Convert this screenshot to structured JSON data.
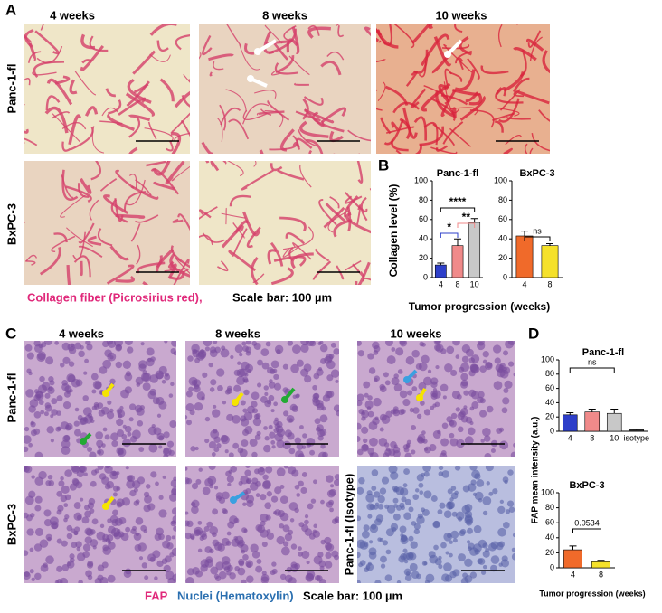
{
  "panels": {
    "A": {
      "label": "A",
      "columns": [
        "4 weeks",
        "8 weeks",
        "10 weeks"
      ],
      "rows": [
        "Panc-1-fl",
        "BxPC-3"
      ],
      "caption": [
        "Collagen fiber (Picrosirius red),",
        "Scale bar: 100 µm"
      ]
    },
    "B": {
      "label": "B"
    },
    "C": {
      "label": "C",
      "columns": [
        "4 weeks",
        "8 weeks",
        "10 weeks"
      ],
      "rows": [
        "Panc-1-fl",
        "BxPC-3"
      ],
      "isotype_label": "Panc-1-fl (Isotype)",
      "caption": [
        "FAP",
        "Nuclei (Hematoxylin)",
        "Scale bar: 100 µm"
      ]
    },
    "D": {
      "label": "D"
    }
  },
  "chart_data": [
    {
      "type": "bar",
      "title": "Panc-1-fl",
      "ylabel": "Collagen level (%)",
      "xlabel": "Tumor progression (weeks)",
      "categories": [
        "4",
        "8",
        "10"
      ],
      "values": [
        13,
        33,
        57
      ],
      "errors": [
        2,
        7,
        4
      ],
      "colors": [
        "#2e3fc9",
        "#f08a8a",
        "#c8c8c8"
      ],
      "ylim": [
        0,
        100
      ],
      "yticks": [
        0,
        20,
        40,
        60,
        80,
        100
      ],
      "annotations": [
        "****",
        "*",
        "**"
      ]
    },
    {
      "type": "bar",
      "title": "BxPC-3",
      "categories": [
        "4",
        "8"
      ],
      "values": [
        43,
        33
      ],
      "errors": [
        5,
        2
      ],
      "colors": [
        "#f06a2a",
        "#f5e12a"
      ],
      "ylim": [
        0,
        100
      ],
      "yticks": [
        0,
        20,
        40,
        60,
        80,
        100
      ],
      "annotations": [
        "ns"
      ]
    },
    {
      "type": "bar",
      "title": "Panc-1-fl",
      "ylabel": "FAP mean intensity (a.u.)",
      "categories": [
        "4",
        "8",
        "10",
        "isotype"
      ],
      "values": [
        23,
        27,
        25,
        2
      ],
      "errors": [
        3,
        4,
        6,
        1
      ],
      "colors": [
        "#2e3fc9",
        "#f08a8a",
        "#c8c8c8",
        "#333333"
      ],
      "ylim": [
        0,
        100
      ],
      "yticks": [
        0,
        20,
        40,
        60,
        80,
        100
      ],
      "annotations": [
        "ns"
      ]
    },
    {
      "type": "bar",
      "title": "BxPC-3",
      "xlabel": "Tumor progression (weeks)",
      "categories": [
        "4",
        "8"
      ],
      "values": [
        24,
        8
      ],
      "errors": [
        5,
        2
      ],
      "colors": [
        "#f06a2a",
        "#f5e12a"
      ],
      "ylim": [
        0,
        100
      ],
      "yticks": [
        0,
        20,
        40,
        60,
        80,
        100
      ],
      "annotations": [
        "0.0534"
      ]
    }
  ]
}
